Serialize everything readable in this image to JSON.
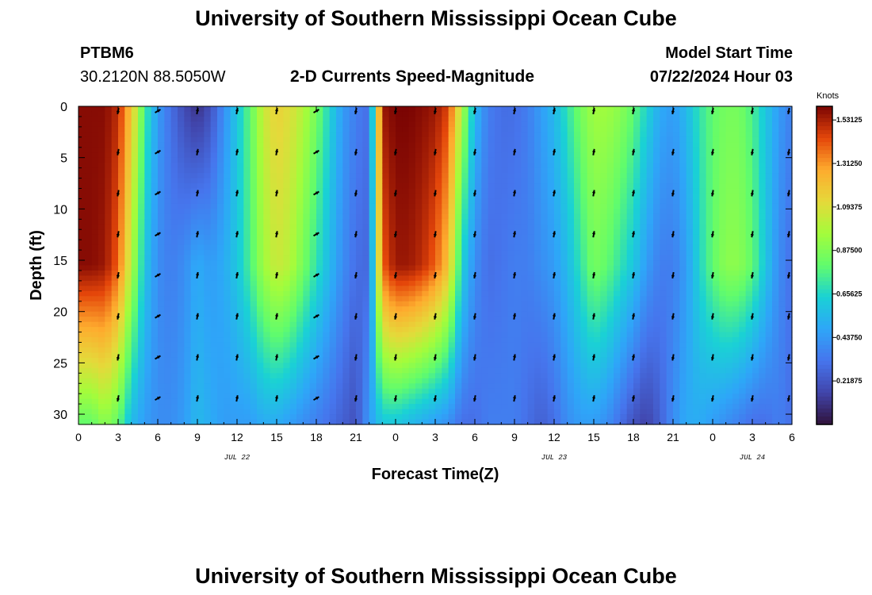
{
  "page": {
    "title_top": "University of Southern Mississippi Ocean Cube",
    "title_bottom": "University of Southern Mississippi Ocean Cube",
    "station_id": "PTBM6",
    "location": "30.2120N  88.5050W",
    "plot_title": "2-D Currents Speed-Magnitude",
    "model_start_label": "Model Start Time",
    "model_start_value": "07/22/2024 Hour 03"
  },
  "chart_data": {
    "type": "heatmap",
    "title": "2-D Currents Speed-Magnitude",
    "xlabel": "Forecast Time(Z)",
    "ylabel": "Depth (ft)",
    "xlim": [
      0,
      54
    ],
    "ylim": [
      31,
      0
    ],
    "x_ticks": [
      "0",
      "3",
      "6",
      "9",
      "12",
      "15",
      "18",
      "21",
      "0",
      "3",
      "6",
      "9",
      "12",
      "15",
      "18",
      "21",
      "0",
      "3",
      "6"
    ],
    "y_ticks": [
      "0",
      "5",
      "10",
      "15",
      "20",
      "25",
      "30"
    ],
    "day_labels": [
      {
        "x": 12,
        "label": "JUL 22"
      },
      {
        "x": 36,
        "label": "JUL 23"
      },
      {
        "x": 51,
        "label": "JUL 24"
      }
    ],
    "colorbar": {
      "label": "Knots",
      "min": 0.0,
      "max": 1.6,
      "tick_values": [
        1.53125,
        1.3125,
        1.09375,
        0.875,
        0.65625,
        0.4375,
        0.21875
      ],
      "tick_labels": [
        "1.53125",
        "1.31250",
        "1.09375",
        "0.87500",
        "0.65625",
        "0.43750",
        "0.21875"
      ],
      "colormap": "turbo"
    },
    "speed_by_hour": {
      "hours": [
        0,
        1,
        2,
        3,
        4,
        5,
        6,
        7,
        8,
        9,
        10,
        11,
        12,
        13,
        14,
        15,
        16,
        17,
        18,
        19,
        20,
        21,
        22,
        23,
        24,
        25,
        26,
        27,
        28,
        29,
        30,
        31,
        32,
        33,
        34,
        35,
        36,
        37,
        38,
        39,
        40,
        41,
        42,
        43,
        44,
        45,
        46,
        47,
        48,
        49,
        50,
        51,
        52,
        53,
        54
      ],
      "surface": [
        1.58,
        1.58,
        1.58,
        1.5,
        1.2,
        0.75,
        0.45,
        0.3,
        0.18,
        0.1,
        0.2,
        0.4,
        0.6,
        0.8,
        1.05,
        1.15,
        1.1,
        1.0,
        0.85,
        0.65,
        0.45,
        0.35,
        0.3,
        1.55,
        1.6,
        1.6,
        1.58,
        1.55,
        1.45,
        1.0,
        0.55,
        0.35,
        0.3,
        0.3,
        0.35,
        0.45,
        0.55,
        0.7,
        0.85,
        0.95,
        0.95,
        0.9,
        0.8,
        0.65,
        0.5,
        0.45,
        0.55,
        0.7,
        0.8,
        0.85,
        0.85,
        0.75,
        0.6,
        0.45,
        0.35
      ],
      "mid": [
        1.58,
        1.58,
        1.55,
        1.4,
        1.0,
        0.6,
        0.4,
        0.35,
        0.4,
        0.5,
        0.45,
        0.5,
        0.6,
        0.75,
        0.95,
        1.05,
        1.0,
        0.85,
        0.7,
        0.55,
        0.4,
        0.3,
        0.28,
        1.4,
        1.55,
        1.55,
        1.5,
        1.4,
        1.2,
        0.65,
        0.4,
        0.3,
        0.32,
        0.35,
        0.35,
        0.4,
        0.45,
        0.55,
        0.7,
        0.85,
        0.8,
        0.7,
        0.6,
        0.45,
        0.35,
        0.35,
        0.45,
        0.65,
        0.8,
        0.9,
        0.9,
        0.8,
        0.6,
        0.4,
        0.3
      ],
      "bottom": [
        0.8,
        0.8,
        0.9,
        0.8,
        0.55,
        0.45,
        0.4,
        0.4,
        0.45,
        0.55,
        0.5,
        0.45,
        0.45,
        0.45,
        0.5,
        0.5,
        0.45,
        0.4,
        0.35,
        0.3,
        0.25,
        0.2,
        0.45,
        0.6,
        0.6,
        0.55,
        0.5,
        0.45,
        0.4,
        0.3,
        0.3,
        0.35,
        0.35,
        0.35,
        0.3,
        0.25,
        0.3,
        0.4,
        0.45,
        0.45,
        0.4,
        0.3,
        0.2,
        0.15,
        0.25,
        0.4,
        0.5,
        0.5,
        0.45,
        0.4,
        0.35,
        0.3,
        0.3,
        0.35,
        0.3
      ]
    },
    "arrow_depths": [
      0,
      4,
      8,
      12,
      16,
      20,
      24,
      28
    ],
    "arrow_times": [
      3,
      6,
      9,
      12,
      15,
      18,
      21,
      24,
      27,
      30,
      33,
      36,
      39,
      42,
      45,
      48,
      51,
      54
    ]
  }
}
